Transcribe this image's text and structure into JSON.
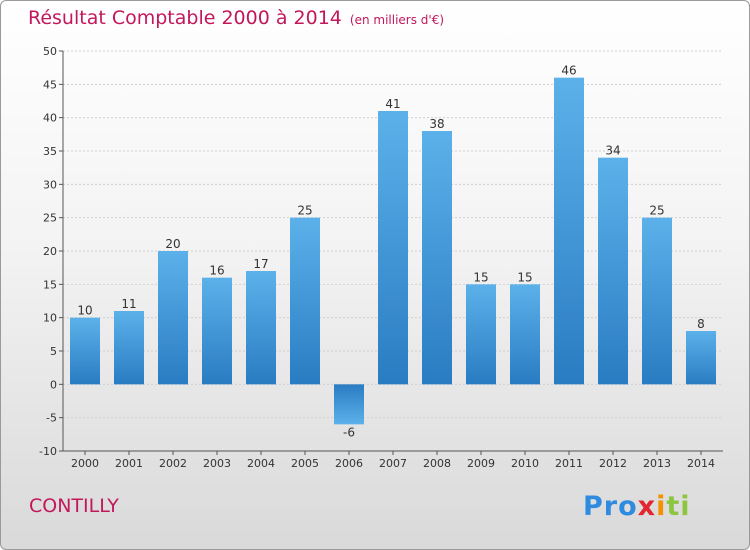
{
  "title": "Résultat Comptable 2000 à 2014",
  "subtitle": "(en milliers d'€)",
  "place": "CONTILLY",
  "logo_text": "Proxiti",
  "colors": {
    "title": "#c2185b",
    "bar_light": "#5aaee8",
    "bar_dark": "#2b7fc4",
    "axis": "#555555",
    "grid": "#cfcfcf"
  },
  "chart_data": {
    "type": "bar",
    "categories": [
      "2000",
      "2001",
      "2002",
      "2003",
      "2004",
      "2005",
      "2006",
      "2007",
      "2008",
      "2009",
      "2010",
      "2011",
      "2012",
      "2013",
      "2014"
    ],
    "values": [
      10,
      11,
      20,
      16,
      17,
      25,
      -6,
      41,
      38,
      15,
      15,
      46,
      34,
      25,
      8
    ],
    "ylim": [
      -10,
      50
    ],
    "yticks": [
      -10,
      -5,
      0,
      5,
      10,
      15,
      20,
      25,
      30,
      35,
      40,
      45,
      50
    ],
    "grid": true,
    "data_labels": true
  }
}
